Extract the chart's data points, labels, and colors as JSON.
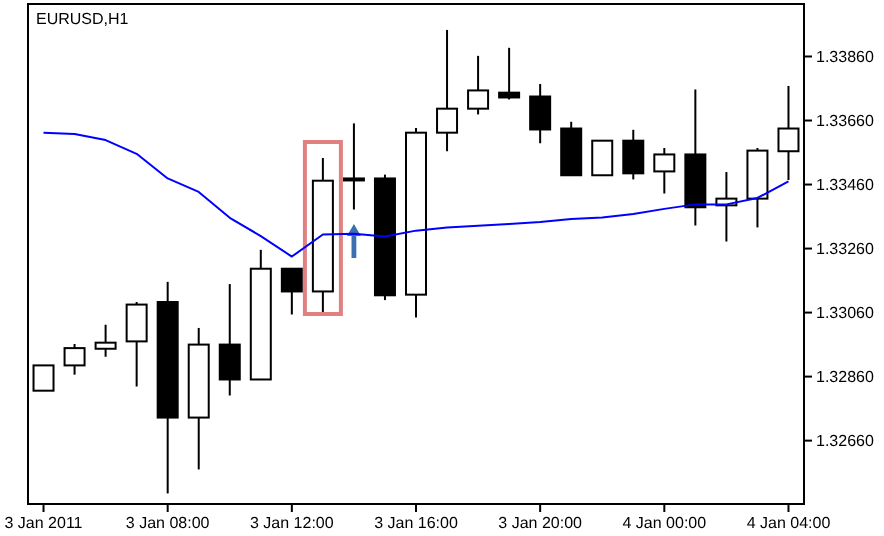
{
  "chart_data": {
    "type": "candlestick",
    "title": "EURUSD,H1",
    "categories": [
      "3 Jan 2011",
      null,
      null,
      null,
      "3 Jan 08:00",
      null,
      null,
      null,
      "3 Jan 12:00",
      null,
      null,
      null,
      "3 Jan 16:00",
      null,
      null,
      null,
      "3 Jan 20:00",
      null,
      null,
      null,
      "4 Jan 00:00",
      null,
      null,
      null,
      "4 Jan 04:00"
    ],
    "ohlc": [
      [
        1.32816,
        1.32895,
        1.32816,
        1.32895
      ],
      [
        1.32895,
        1.32962,
        1.32866,
        1.32949
      ],
      [
        1.32947,
        1.33022,
        1.32922,
        1.32966
      ],
      [
        1.3297,
        1.33093,
        1.32829,
        1.33085
      ],
      [
        1.33093,
        1.33156,
        1.32495,
        1.32732
      ],
      [
        1.32732,
        1.33012,
        1.3257,
        1.3296
      ],
      [
        1.3296,
        1.33149,
        1.32801,
        1.32851
      ],
      [
        1.32851,
        1.33256,
        1.32851,
        1.33197
      ],
      [
        1.33197,
        1.33197,
        1.33054,
        1.33126
      ],
      [
        1.33126,
        1.33543,
        1.33057,
        1.33472
      ],
      [
        1.33479,
        1.33651,
        1.33382,
        1.33479
      ],
      [
        1.33479,
        1.33491,
        1.33099,
        1.33114
      ],
      [
        1.33116,
        1.33637,
        1.33045,
        1.33622
      ],
      [
        1.33622,
        1.33943,
        1.33564,
        1.33697
      ],
      [
        1.33697,
        1.33862,
        1.33679,
        1.33754
      ],
      [
        1.33747,
        1.33887,
        1.33726,
        1.33732
      ],
      [
        1.33735,
        1.33774,
        1.33589,
        1.33632
      ],
      [
        1.33635,
        1.33656,
        1.33489,
        1.33489
      ],
      [
        1.33489,
        1.33597,
        1.33489,
        1.33597
      ],
      [
        1.33597,
        1.33631,
        1.33476,
        1.33495
      ],
      [
        1.33501,
        1.33574,
        1.33432,
        1.33554
      ],
      [
        1.33554,
        1.33757,
        1.33332,
        1.33389
      ],
      [
        1.33395,
        1.33499,
        1.33282,
        1.33416
      ],
      [
        1.33416,
        1.33574,
        1.33326,
        1.33566
      ],
      [
        1.33564,
        1.33768,
        1.33474,
        1.33635
      ]
    ],
    "series": [
      {
        "type": "line",
        "color": "#0000ff",
        "values": [
          1.33622,
          1.33618,
          1.33599,
          1.33556,
          1.33479,
          1.33437,
          1.33356,
          1.33299,
          1.33235,
          1.33304,
          1.33306,
          1.33298,
          1.33316,
          1.33326,
          1.33331,
          1.33337,
          1.33343,
          1.33352,
          1.33357,
          1.33368,
          1.33384,
          1.33398,
          1.33398,
          1.33418,
          1.3347
        ]
      }
    ],
    "ylim": [
      1.32462,
      1.34024
    ],
    "yticks": [
      {
        "value": 1.3266,
        "label": "1.32660"
      },
      {
        "value": 1.3286,
        "label": "1.32860"
      },
      {
        "value": 1.3306,
        "label": "1.33060"
      },
      {
        "value": 1.3326,
        "label": "1.33260"
      },
      {
        "value": 1.3346,
        "label": "1.33460"
      },
      {
        "value": 1.3366,
        "label": "1.33660"
      },
      {
        "value": 1.3386,
        "label": "1.33860"
      }
    ]
  }
}
